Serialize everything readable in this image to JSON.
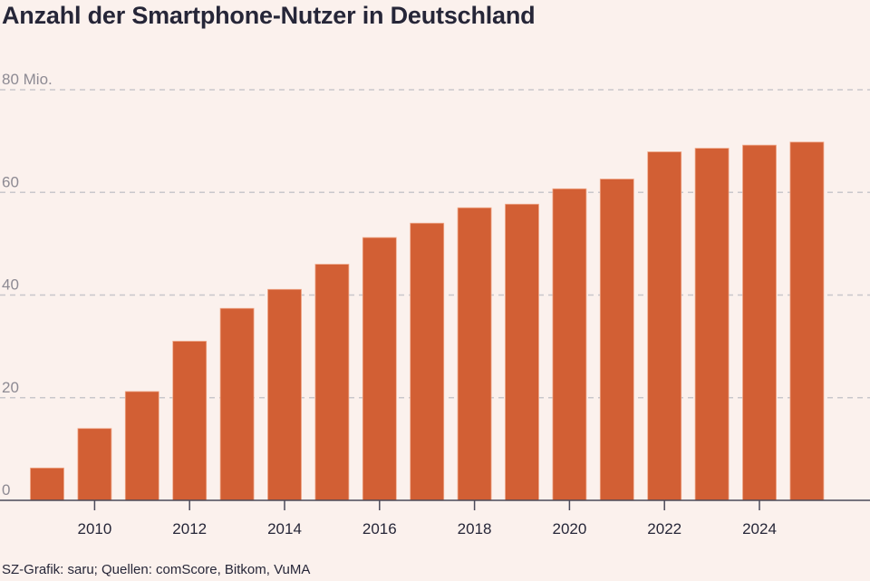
{
  "title": "Anzahl der Smartphone-Nutzer in Deutschland",
  "footer": "SZ-Grafik: saru; Quellen: comScore, Bitkom, VuMA",
  "colors": {
    "bar": "#d25f34",
    "bar_edge": "#f0a98a",
    "grid": "#c9c7cc",
    "axis": "#4a4a5a",
    "background": "#fbf1ed"
  },
  "chart_data": {
    "type": "bar",
    "title": "Anzahl der Smartphone-Nutzer in Deutschland",
    "xlabel": "",
    "ylabel": "",
    "unit": "Mio.",
    "categories": [
      "2009",
      "2010",
      "2011",
      "2012",
      "2013",
      "2014",
      "2015",
      "2016",
      "2017",
      "2018",
      "2019",
      "2020",
      "2021",
      "2022",
      "2023",
      "2024",
      "2025"
    ],
    "values": [
      6.3,
      14.0,
      21.2,
      31.0,
      37.4,
      41.1,
      46.0,
      51.2,
      54.0,
      57.0,
      57.7,
      60.7,
      62.6,
      67.9,
      68.6,
      69.2,
      69.8
    ],
    "ylim": [
      0,
      80
    ],
    "y_ticks": [
      {
        "value": 0,
        "label": "0"
      },
      {
        "value": 20,
        "label": "20"
      },
      {
        "value": 40,
        "label": "40"
      },
      {
        "value": 60,
        "label": "60"
      },
      {
        "value": 80,
        "label": "80 Mio."
      }
    ],
    "x_ticks": [
      "2010",
      "2012",
      "2014",
      "2016",
      "2018",
      "2020",
      "2022",
      "2024"
    ],
    "grid": true,
    "legend": "none"
  }
}
